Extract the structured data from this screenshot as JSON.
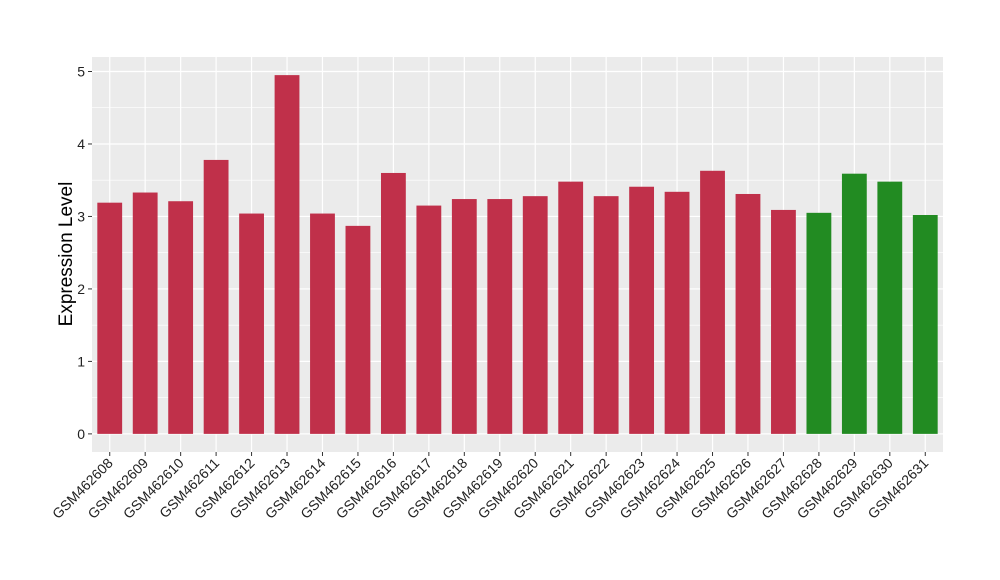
{
  "chart_data": {
    "type": "bar",
    "ylabel": "Expression Level",
    "xlabel": "",
    "ylim": [
      -0.25,
      5.2
    ],
    "yticks": [
      0,
      1,
      2,
      3,
      4,
      5
    ],
    "grid": true,
    "categories": [
      "GSM462608",
      "GSM462609",
      "GSM462610",
      "GSM462611",
      "GSM462612",
      "GSM462613",
      "GSM462614",
      "GSM462615",
      "GSM462616",
      "GSM462617",
      "GSM462618",
      "GSM462619",
      "GSM462620",
      "GSM462621",
      "GSM462622",
      "GSM462623",
      "GSM462624",
      "GSM462625",
      "GSM462626",
      "GSM462627",
      "GSM462628",
      "GSM462629",
      "GSM462630",
      "GSM462631"
    ],
    "values": [
      3.19,
      3.33,
      3.21,
      3.78,
      3.04,
      4.95,
      3.04,
      2.87,
      3.6,
      3.15,
      3.24,
      3.24,
      3.28,
      3.48,
      3.28,
      3.41,
      3.34,
      3.63,
      3.31,
      3.09,
      3.05,
      3.59,
      3.48,
      3.02
    ],
    "groups": [
      "red",
      "red",
      "red",
      "red",
      "red",
      "red",
      "red",
      "red",
      "red",
      "red",
      "red",
      "red",
      "red",
      "red",
      "red",
      "red",
      "red",
      "red",
      "red",
      "red",
      "green",
      "green",
      "green",
      "green"
    ],
    "colors": {
      "red": "#c0304a",
      "green": "#228b22",
      "panel": "#ebebeb",
      "grid": "#ffffff"
    }
  }
}
